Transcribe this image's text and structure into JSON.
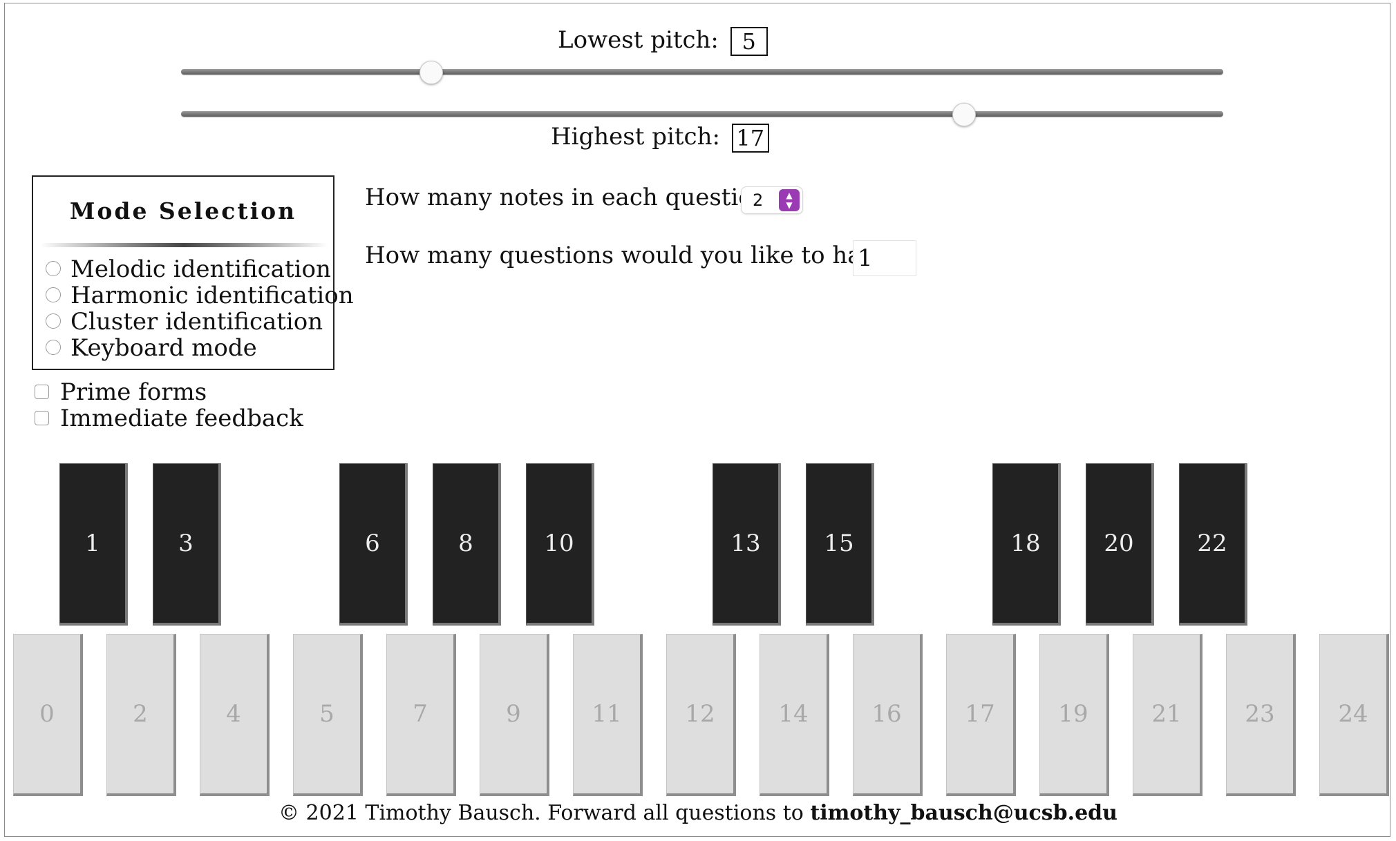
{
  "pitch_range": {
    "lowest_label": "Lowest pitch:",
    "lowest_value": "5",
    "highest_label": "Highest pitch:",
    "highest_value": "17",
    "slider_min": 0,
    "slider_max": 24
  },
  "mode_selection": {
    "title": "Mode Selection",
    "options": [
      {
        "label": "Melodic identification",
        "checked": false
      },
      {
        "label": "Harmonic identification",
        "checked": false
      },
      {
        "label": "Cluster identification",
        "checked": false
      },
      {
        "label": "Keyboard mode",
        "checked": false
      }
    ]
  },
  "checkboxes": [
    {
      "label": "Prime forms",
      "checked": false
    },
    {
      "label": "Immediate feedback",
      "checked": false
    }
  ],
  "questions": {
    "notes_label": "How many notes in each question?",
    "notes_value": "2",
    "count_label": "How many questions would you like to have?",
    "count_value": "1"
  },
  "keyboard": {
    "black_keys": [
      "1",
      "3",
      "6",
      "8",
      "10",
      "13",
      "15",
      "18",
      "20",
      "22"
    ],
    "white_keys": [
      "0",
      "2",
      "4",
      "5",
      "7",
      "9",
      "11",
      "12",
      "14",
      "16",
      "17",
      "19",
      "21",
      "23",
      "24"
    ]
  },
  "footer": {
    "text": "© 2021 Timothy Bausch. Forward all questions to",
    "email": "timothy_bausch@ucsb.edu"
  },
  "colors": {
    "black_key": "#222222",
    "white_key": "#dedede",
    "select_accent": "#9b3bb3"
  }
}
